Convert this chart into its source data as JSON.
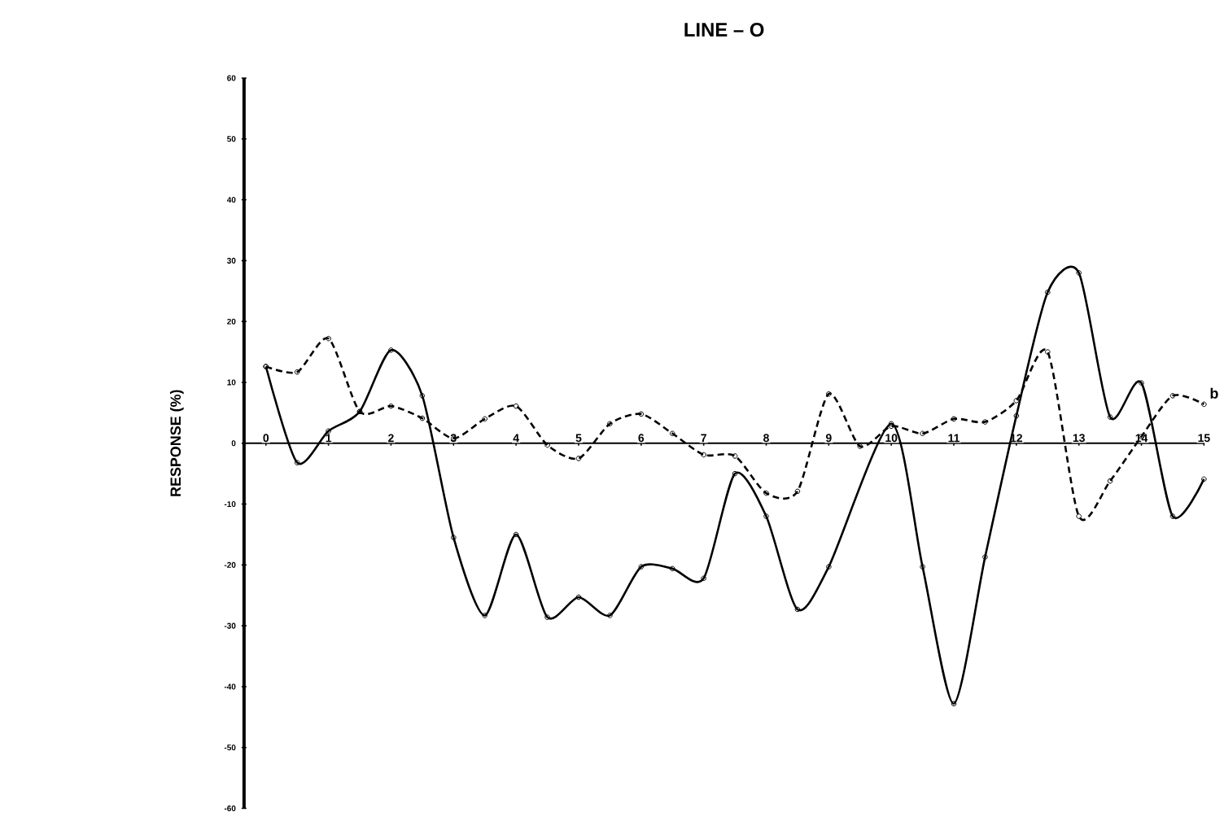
{
  "chart_data": {
    "type": "line",
    "title": "LINE – O",
    "ylabel": "RESPONSE    (%)",
    "xlim": [
      -0.35,
      15
    ],
    "xticks": [
      0,
      1,
      2,
      3,
      4,
      5,
      6,
      7,
      8,
      9,
      10,
      11,
      12,
      13,
      14,
      15
    ],
    "ylim": [
      -60,
      60
    ],
    "yticks": [
      60,
      50,
      40,
      30,
      20,
      10,
      0,
      -10,
      -20,
      -30,
      -40,
      -50,
      -60
    ],
    "marker": "circle",
    "grid": false,
    "legend": false,
    "series": [
      {
        "color": "#000000",
        "line_style": "solid",
        "x": [
          0,
          0.5,
          1,
          1.5,
          2,
          2.5,
          3,
          3.5,
          4,
          4.5,
          5,
          5.5,
          6,
          6.5,
          7,
          7.5,
          8,
          8.5,
          9,
          10,
          10.5,
          11,
          11.5,
          12,
          12.5,
          13,
          13.5,
          14,
          14.5,
          15
        ],
        "values": [
          12.6,
          -3.2,
          2,
          5.2,
          15.3,
          7.8,
          -15.5,
          -28.3,
          -15,
          -28.6,
          -25.3,
          -28.3,
          -20.3,
          -20.6,
          -22.2,
          -5,
          -12,
          -27.3,
          -20.3,
          3.2,
          -20.3,
          -42.8,
          -18.7,
          4.5,
          24.8,
          28,
          4.3,
          9.9,
          -12,
          -5.9
        ]
      },
      {
        "name": "b",
        "color": "#000000",
        "line_style": "dashed",
        "x": [
          0,
          0.5,
          1,
          1.5,
          2,
          2.5,
          3,
          3.5,
          4,
          4.5,
          5,
          5.5,
          6,
          6.5,
          7,
          7.5,
          8,
          8.5,
          9,
          9.5,
          10,
          10.5,
          11,
          11.5,
          12,
          12.5,
          13,
          13.5,
          14,
          14.5,
          15
        ],
        "values": [
          12.6,
          11.7,
          17.2,
          5.2,
          6.1,
          4.1,
          0.8,
          4,
          6.1,
          -0.3,
          -2.5,
          3.2,
          4.8,
          1.6,
          -1.9,
          -2.1,
          -8.2,
          -7.9,
          8.1,
          -0.5,
          2.8,
          1.6,
          4,
          3.5,
          7,
          15,
          -12,
          -6.2,
          1.1,
          7.8,
          6.4
        ]
      }
    ]
  }
}
